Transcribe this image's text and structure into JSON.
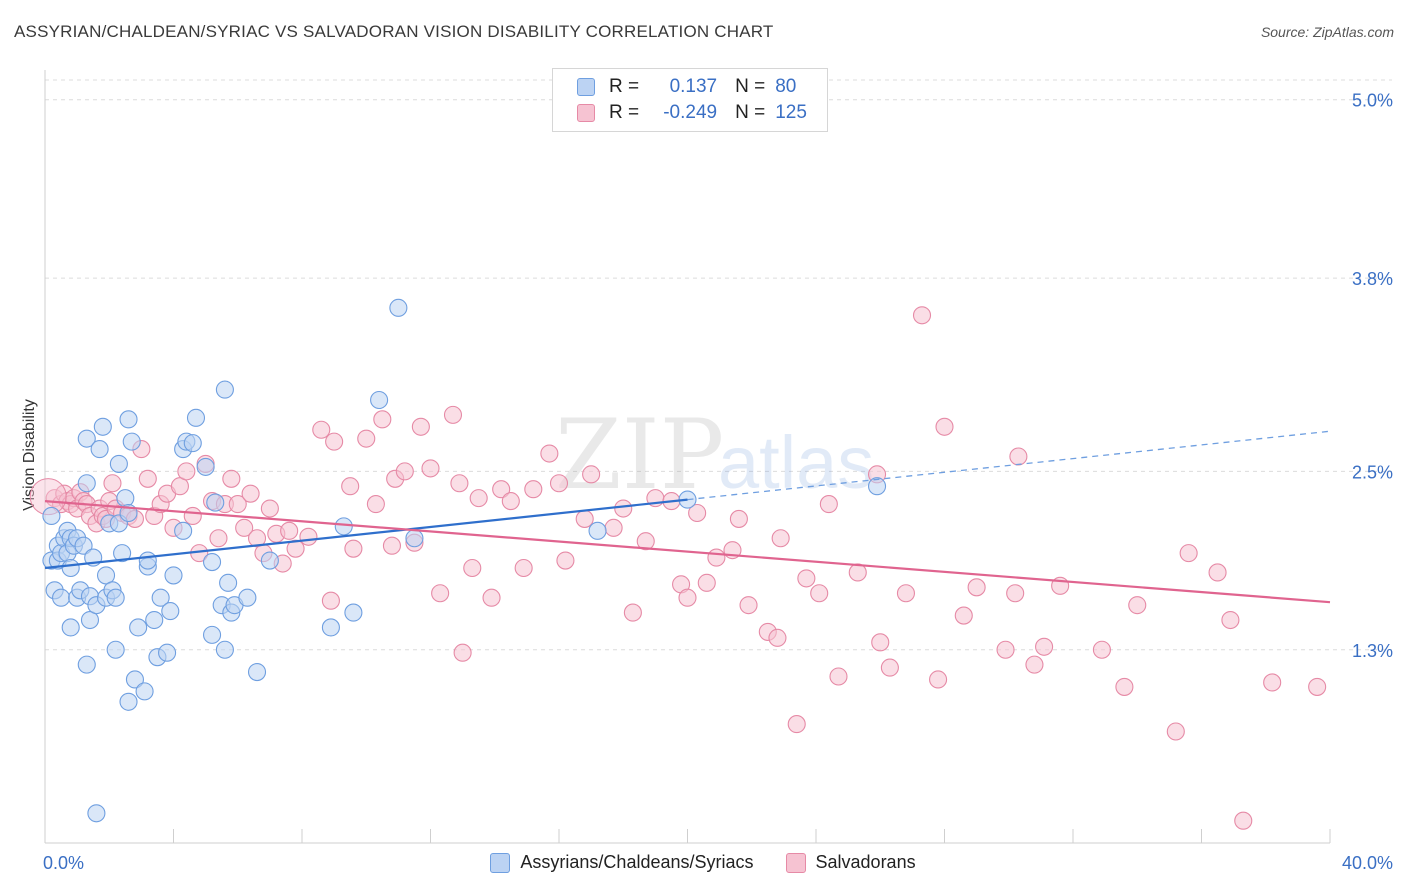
{
  "header": {
    "title": "ASSYRIAN/CHALDEAN/SYRIAC VS SALVADORAN VISION DISABILITY CORRELATION CHART",
    "source": "Source: ZipAtlas.com"
  },
  "legend": {
    "r_label": "R =",
    "n_label": "N =",
    "series": [
      {
        "r": "0.137",
        "n": "80"
      },
      {
        "r": "-0.249",
        "n": "125"
      }
    ]
  },
  "watermark": {
    "zip": "ZIP",
    "atlas": "atlas"
  },
  "chart_data": {
    "type": "scatter",
    "title": "ASSYRIAN/CHALDEAN/SYRIAC VS SALVADORAN VISION DISABILITY CORRELATION CHART",
    "xlabel": "",
    "ylabel": "Vision Disability",
    "xlim": [
      0,
      40
    ],
    "ylim": [
      0,
      5.2
    ],
    "x_tick_labels": [
      "0.0%",
      "40.0%"
    ],
    "y_ticks": [
      1.3,
      2.5,
      3.8,
      5.0
    ],
    "y_tick_labels": [
      "1.3%",
      "2.5%",
      "3.8%",
      "5.0%"
    ],
    "grid": true,
    "legend_position": "top-center",
    "series": [
      {
        "name": "Assyrians/Chaldeans/Syriacs",
        "color": "#6f9fe0",
        "fill": "#bcd3f3",
        "trend": {
          "x": [
            0,
            20
          ],
          "y": [
            1.85,
            2.31
          ],
          "dashed_x": [
            20,
            40
          ],
          "dashed_y": [
            2.31,
            2.77
          ]
        },
        "points": [
          [
            0.2,
            2.2
          ],
          [
            0.2,
            1.9
          ],
          [
            0.3,
            1.7
          ],
          [
            0.4,
            2.0
          ],
          [
            0.4,
            1.9
          ],
          [
            0.5,
            1.95
          ],
          [
            0.5,
            1.65
          ],
          [
            0.6,
            2.05
          ],
          [
            0.7,
            2.1
          ],
          [
            0.7,
            1.95
          ],
          [
            0.8,
            1.85
          ],
          [
            0.8,
            1.45
          ],
          [
            0.8,
            2.05
          ],
          [
            0.9,
            2.0
          ],
          [
            1.0,
            1.65
          ],
          [
            1.0,
            2.05
          ],
          [
            1.1,
            1.7
          ],
          [
            1.2,
            2.0
          ],
          [
            1.3,
            1.2
          ],
          [
            1.3,
            2.72
          ],
          [
            1.3,
            2.42
          ],
          [
            1.4,
            1.5
          ],
          [
            1.4,
            1.66
          ],
          [
            1.5,
            1.92
          ],
          [
            1.6,
            1.6
          ],
          [
            1.6,
            0.2
          ],
          [
            1.7,
            2.65
          ],
          [
            1.8,
            2.8
          ],
          [
            1.9,
            1.8
          ],
          [
            1.9,
            1.65
          ],
          [
            2.0,
            2.15
          ],
          [
            2.1,
            1.7
          ],
          [
            2.2,
            1.65
          ],
          [
            2.2,
            1.3
          ],
          [
            2.3,
            2.55
          ],
          [
            2.3,
            2.15
          ],
          [
            2.4,
            1.95
          ],
          [
            2.5,
            2.32
          ],
          [
            2.6,
            2.22
          ],
          [
            2.6,
            2.85
          ],
          [
            2.6,
            0.95
          ],
          [
            2.7,
            2.7
          ],
          [
            2.8,
            1.1
          ],
          [
            2.9,
            1.45
          ],
          [
            3.1,
            1.02
          ],
          [
            3.2,
            1.86
          ],
          [
            3.2,
            1.9
          ],
          [
            3.4,
            1.5
          ],
          [
            3.5,
            1.25
          ],
          [
            3.6,
            1.65
          ],
          [
            3.8,
            1.28
          ],
          [
            3.9,
            1.56
          ],
          [
            4.0,
            1.8
          ],
          [
            4.3,
            2.1
          ],
          [
            4.3,
            2.65
          ],
          [
            4.4,
            2.7
          ],
          [
            4.6,
            2.69
          ],
          [
            4.7,
            2.86
          ],
          [
            5.0,
            2.53
          ],
          [
            5.2,
            1.89
          ],
          [
            5.2,
            1.4
          ],
          [
            5.3,
            2.29
          ],
          [
            5.5,
            1.6
          ],
          [
            5.6,
            3.05
          ],
          [
            5.6,
            1.3
          ],
          [
            5.7,
            1.75
          ],
          [
            5.8,
            1.55
          ],
          [
            5.9,
            1.6
          ],
          [
            6.3,
            1.65
          ],
          [
            6.6,
            1.15
          ],
          [
            7.0,
            1.9
          ],
          [
            8.9,
            1.45
          ],
          [
            9.3,
            2.13
          ],
          [
            9.6,
            1.55
          ],
          [
            10.4,
            2.98
          ],
          [
            11.0,
            3.6
          ],
          [
            11.5,
            2.05
          ],
          [
            17.2,
            2.1
          ],
          [
            20.0,
            2.31
          ],
          [
            25.9,
            2.4
          ]
        ]
      },
      {
        "name": "Salvadorans",
        "color": "#e68aa6",
        "fill": "#f6c3d2",
        "trend": {
          "x": [
            0,
            40
          ],
          "y": [
            2.3,
            1.62
          ]
        },
        "points": [
          [
            0.3,
            2.32
          ],
          [
            0.5,
            2.28
          ],
          [
            0.6,
            2.35
          ],
          [
            0.7,
            2.3
          ],
          [
            0.8,
            2.28
          ],
          [
            0.9,
            2.32
          ],
          [
            1.0,
            2.25
          ],
          [
            1.1,
            2.36
          ],
          [
            1.2,
            2.3
          ],
          [
            1.3,
            2.28
          ],
          [
            1.4,
            2.2
          ],
          [
            1.6,
            2.15
          ],
          [
            1.7,
            2.25
          ],
          [
            1.8,
            2.2
          ],
          [
            1.9,
            2.18
          ],
          [
            2.0,
            2.3
          ],
          [
            2.1,
            2.42
          ],
          [
            2.2,
            2.25
          ],
          [
            2.4,
            2.22
          ],
          [
            2.6,
            2.2
          ],
          [
            2.8,
            2.18
          ],
          [
            3.0,
            2.65
          ],
          [
            3.2,
            2.45
          ],
          [
            3.4,
            2.2
          ],
          [
            3.6,
            2.28
          ],
          [
            3.8,
            2.35
          ],
          [
            4.0,
            2.12
          ],
          [
            4.2,
            2.4
          ],
          [
            4.4,
            2.5
          ],
          [
            4.6,
            2.2
          ],
          [
            4.8,
            1.95
          ],
          [
            5.0,
            2.55
          ],
          [
            5.2,
            2.3
          ],
          [
            5.4,
            2.05
          ],
          [
            5.6,
            2.28
          ],
          [
            5.8,
            2.45
          ],
          [
            6.0,
            2.28
          ],
          [
            6.2,
            2.12
          ],
          [
            6.4,
            2.35
          ],
          [
            6.6,
            2.05
          ],
          [
            6.8,
            1.95
          ],
          [
            7.0,
            2.25
          ],
          [
            7.2,
            2.08
          ],
          [
            7.4,
            1.88
          ],
          [
            7.6,
            2.1
          ],
          [
            7.8,
            1.98
          ],
          [
            8.2,
            2.06
          ],
          [
            8.6,
            2.78
          ],
          [
            8.9,
            1.63
          ],
          [
            9.0,
            2.7
          ],
          [
            9.5,
            2.4
          ],
          [
            9.6,
            1.98
          ],
          [
            10.0,
            2.72
          ],
          [
            10.3,
            2.28
          ],
          [
            10.5,
            2.85
          ],
          [
            10.8,
            2.0
          ],
          [
            10.9,
            2.45
          ],
          [
            11.2,
            2.5
          ],
          [
            11.5,
            2.02
          ],
          [
            11.7,
            2.8
          ],
          [
            12.0,
            2.52
          ],
          [
            12.3,
            1.68
          ],
          [
            12.7,
            2.88
          ],
          [
            12.9,
            2.42
          ],
          [
            13.0,
            1.28
          ],
          [
            13.3,
            1.85
          ],
          [
            13.5,
            2.32
          ],
          [
            13.9,
            1.65
          ],
          [
            14.2,
            2.38
          ],
          [
            14.5,
            2.3
          ],
          [
            14.9,
            1.85
          ],
          [
            15.2,
            2.38
          ],
          [
            15.7,
            2.62
          ],
          [
            16.0,
            2.42
          ],
          [
            16.2,
            1.9
          ],
          [
            16.8,
            2.18
          ],
          [
            17.0,
            2.48
          ],
          [
            17.7,
            2.12
          ],
          [
            18.0,
            2.25
          ],
          [
            18.3,
            1.55
          ],
          [
            18.7,
            2.03
          ],
          [
            19.0,
            2.32
          ],
          [
            19.5,
            2.3
          ],
          [
            19.8,
            1.74
          ],
          [
            20.0,
            1.65
          ],
          [
            20.3,
            2.22
          ],
          [
            20.6,
            1.75
          ],
          [
            20.9,
            1.92
          ],
          [
            21.4,
            1.97
          ],
          [
            21.6,
            2.18
          ],
          [
            21.9,
            1.6
          ],
          [
            22.5,
            1.42
          ],
          [
            22.8,
            1.38
          ],
          [
            22.9,
            2.05
          ],
          [
            23.4,
            0.8
          ],
          [
            23.7,
            1.78
          ],
          [
            24.1,
            1.68
          ],
          [
            24.4,
            2.28
          ],
          [
            24.7,
            1.12
          ],
          [
            25.3,
            1.82
          ],
          [
            25.9,
            2.48
          ],
          [
            26.0,
            1.35
          ],
          [
            26.3,
            1.18
          ],
          [
            26.8,
            1.68
          ],
          [
            27.3,
            3.55
          ],
          [
            27.8,
            1.1
          ],
          [
            28.0,
            2.8
          ],
          [
            28.6,
            1.53
          ],
          [
            29.0,
            1.72
          ],
          [
            29.9,
            1.3
          ],
          [
            30.2,
            1.68
          ],
          [
            30.3,
            2.6
          ],
          [
            30.8,
            1.2
          ],
          [
            31.1,
            1.32
          ],
          [
            31.6,
            1.73
          ],
          [
            32.9,
            1.3
          ],
          [
            33.6,
            1.05
          ],
          [
            34.0,
            1.6
          ],
          [
            35.2,
            0.75
          ],
          [
            35.6,
            1.95
          ],
          [
            36.5,
            1.82
          ],
          [
            36.9,
            1.5
          ],
          [
            37.3,
            0.15
          ],
          [
            38.2,
            1.08
          ],
          [
            39.6,
            1.05
          ]
        ]
      }
    ]
  },
  "bottom_legend": [
    "Assyrians/Chaldeans/Syriacs",
    "Salvadorans"
  ]
}
